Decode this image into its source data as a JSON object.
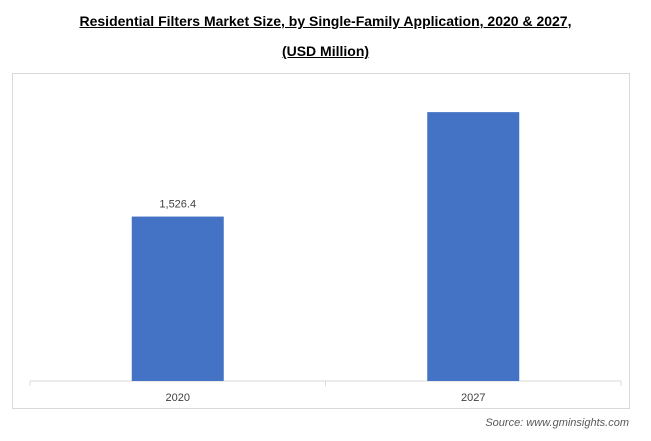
{
  "title_line1": "Residential Filters Market Size, by Single-Family Application, 2020 & 2027,",
  "title_line2": "(USD Million)",
  "source": "Source: www.gminsights.com",
  "colors": {
    "bar": "#4472c4",
    "axis": "#d9d9d9",
    "label": "#404040"
  },
  "chart_data": {
    "type": "bar",
    "title": "Residential Filters Market Size, by Single-Family Application, 2020 & 2027, (USD Million)",
    "categories": [
      "2020",
      "2027"
    ],
    "values": [
      1526.4,
      2496
    ],
    "data_labels": [
      "1,526.4",
      ""
    ],
    "xlabel": "",
    "ylabel": "",
    "ylim": [
      0,
      2850
    ],
    "grid": false,
    "legend": "none"
  }
}
